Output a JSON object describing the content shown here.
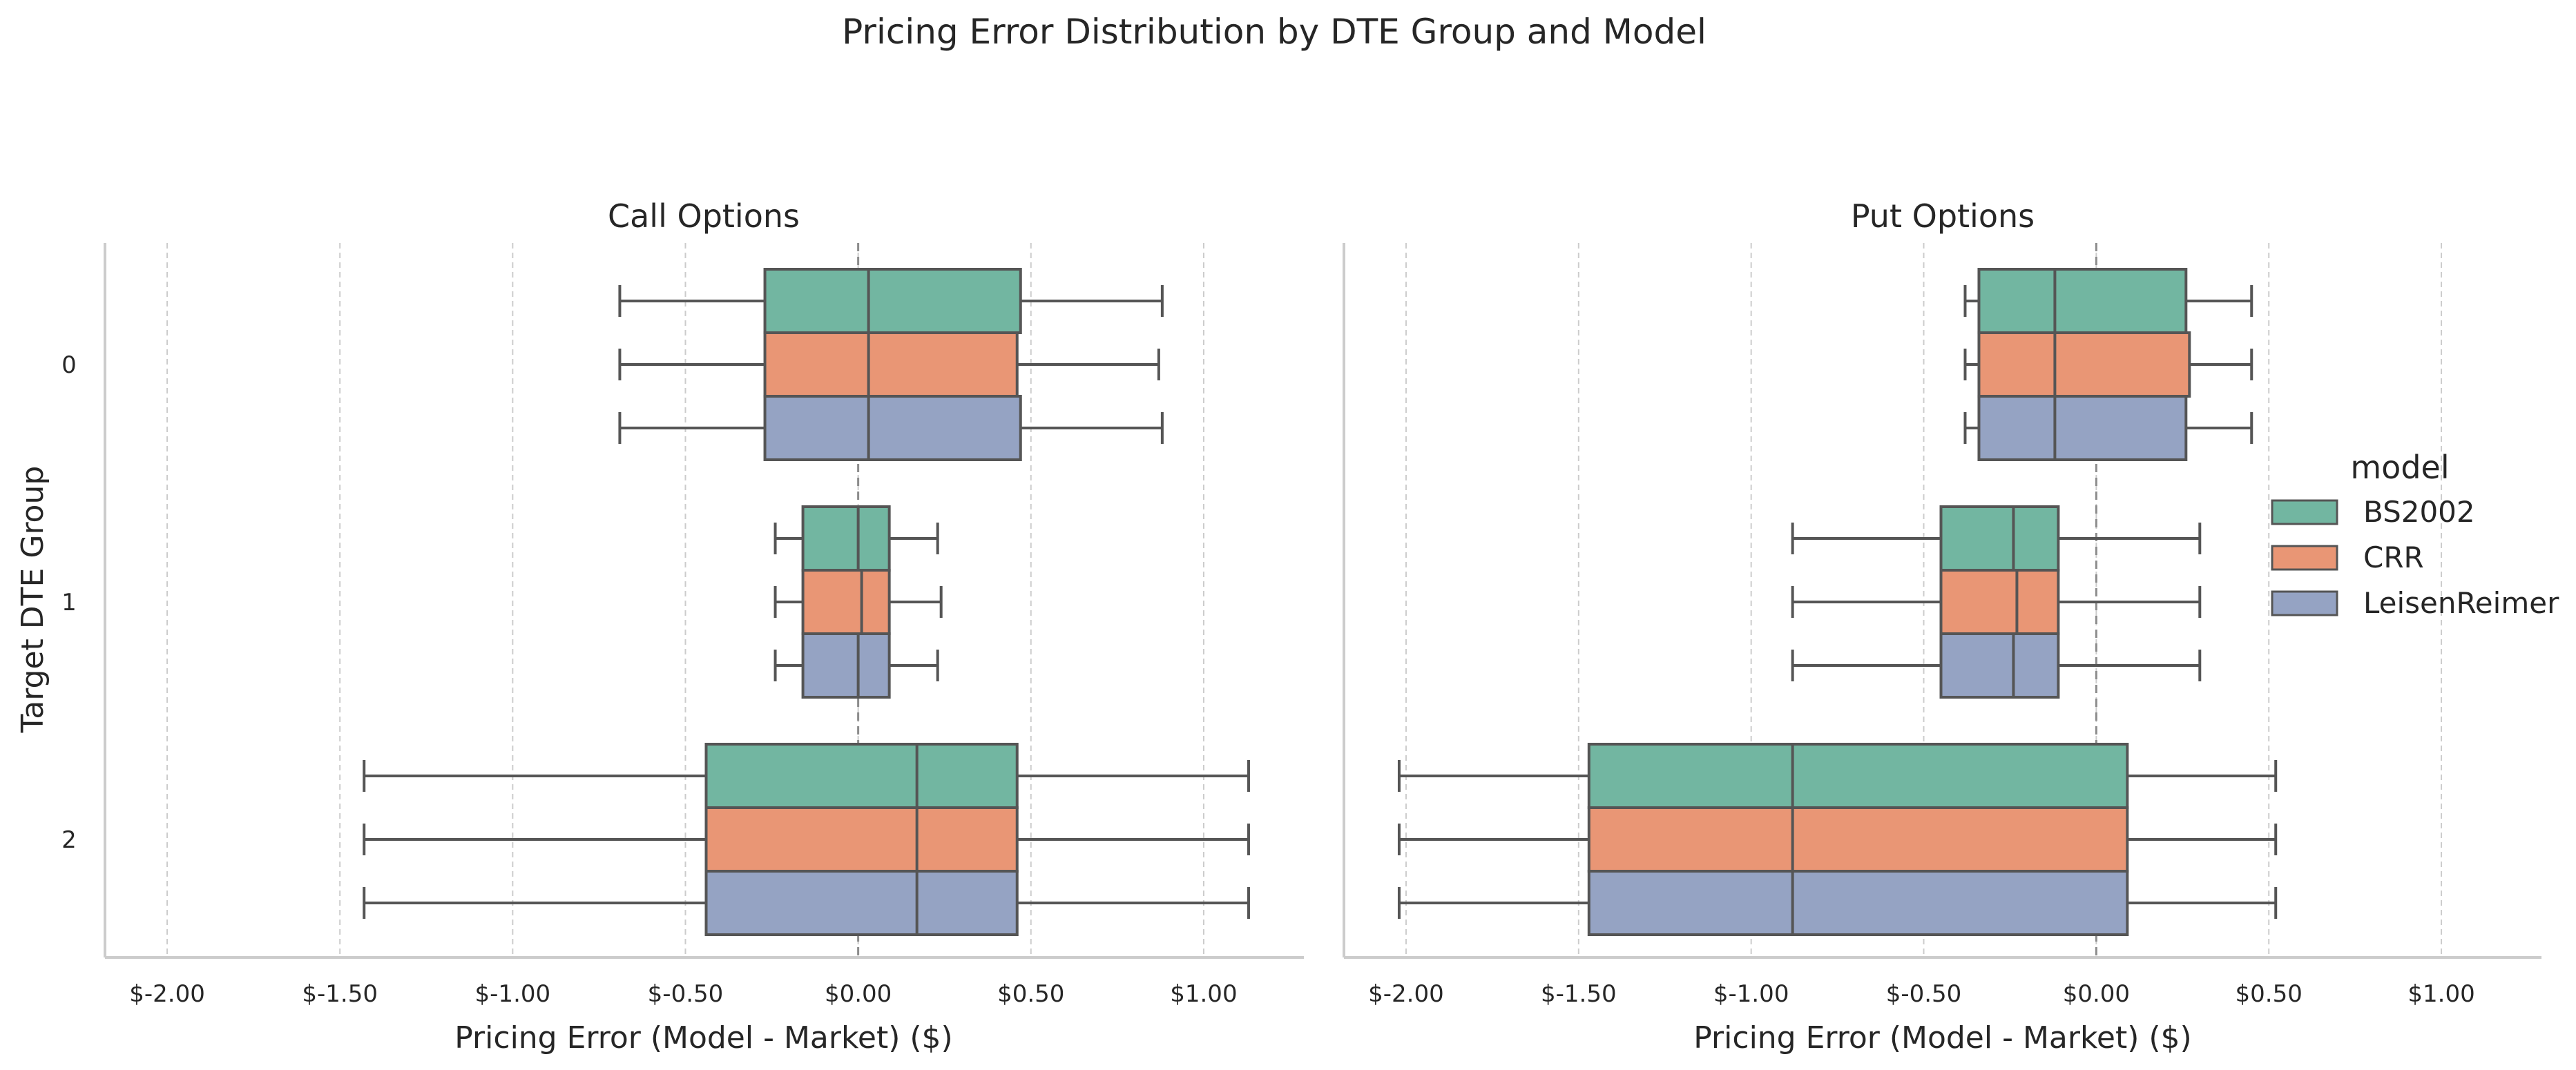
{
  "suptitle": "Pricing Error Distribution by DTE Group and Model",
  "colors": {
    "BS2002": "#72b6a1",
    "CRR": "#e99675",
    "LeisenReimer": "#95a3c3",
    "box_edge": "#555555",
    "grid": "#cccccc",
    "spine": "#cccccc",
    "zero_line": "#8c8c8c"
  },
  "chart_data": [
    {
      "type": "boxplot",
      "title": "Call Options",
      "xlabel": "Pricing Error (Model - Market) ($)",
      "ylabel": "Target DTE Group",
      "orientation": "horizontal",
      "xlim": [
        -2.18,
        1.29
      ],
      "xticks": [
        -2.0,
        -1.5,
        -1.0,
        -0.5,
        0.0,
        0.5,
        1.0
      ],
      "xtick_labels": [
        "$-2.00",
        "$-1.50",
        "$-1.00",
        "$-0.50",
        "$0.00",
        "$0.50",
        "$1.00"
      ],
      "categories": [
        "0",
        "1",
        "2"
      ],
      "grid": "x dashed",
      "reference_line": 0.0,
      "series": [
        {
          "name": "BS2002",
          "boxes": [
            {
              "whislo": -0.69,
              "q1": -0.27,
              "med": 0.03,
              "q3": 0.47,
              "whishi": 0.88
            },
            {
              "whislo": -0.24,
              "q1": -0.16,
              "med": 0.0,
              "q3": 0.09,
              "whishi": 0.23
            },
            {
              "whislo": -1.43,
              "q1": -0.44,
              "med": 0.17,
              "q3": 0.46,
              "whishi": 1.13
            }
          ]
        },
        {
          "name": "CRR",
          "boxes": [
            {
              "whislo": -0.69,
              "q1": -0.27,
              "med": 0.03,
              "q3": 0.46,
              "whishi": 0.87
            },
            {
              "whislo": -0.24,
              "q1": -0.16,
              "med": 0.01,
              "q3": 0.09,
              "whishi": 0.24
            },
            {
              "whislo": -1.43,
              "q1": -0.44,
              "med": 0.17,
              "q3": 0.46,
              "whishi": 1.13
            }
          ]
        },
        {
          "name": "LeisenReimer",
          "boxes": [
            {
              "whislo": -0.69,
              "q1": -0.27,
              "med": 0.03,
              "q3": 0.47,
              "whishi": 0.88
            },
            {
              "whislo": -0.24,
              "q1": -0.16,
              "med": 0.0,
              "q3": 0.09,
              "whishi": 0.23
            },
            {
              "whislo": -1.43,
              "q1": -0.44,
              "med": 0.17,
              "q3": 0.46,
              "whishi": 1.13
            }
          ]
        }
      ]
    },
    {
      "type": "boxplot",
      "title": "Put Options",
      "xlabel": "Pricing Error (Model - Market) ($)",
      "ylabel": "",
      "orientation": "horizontal",
      "xlim": [
        -2.18,
        1.29
      ],
      "xticks": [
        -2.0,
        -1.5,
        -1.0,
        -0.5,
        0.0,
        0.5,
        1.0
      ],
      "xtick_labels": [
        "$-2.00",
        "$-1.50",
        "$-1.00",
        "$-0.50",
        "$0.00",
        "$0.50",
        "$1.00"
      ],
      "categories": [
        "0",
        "1",
        "2"
      ],
      "grid": "x dashed",
      "reference_line": 0.0,
      "series": [
        {
          "name": "BS2002",
          "boxes": [
            {
              "whislo": -0.38,
              "q1": -0.34,
              "med": -0.12,
              "q3": 0.26,
              "whishi": 0.45
            },
            {
              "whislo": -0.88,
              "q1": -0.45,
              "med": -0.24,
              "q3": -0.11,
              "whishi": 0.3
            },
            {
              "whislo": -2.02,
              "q1": -1.47,
              "med": -0.88,
              "q3": 0.09,
              "whishi": 0.52
            }
          ]
        },
        {
          "name": "CRR",
          "boxes": [
            {
              "whislo": -0.38,
              "q1": -0.34,
              "med": -0.12,
              "q3": 0.27,
              "whishi": 0.45
            },
            {
              "whislo": -0.88,
              "q1": -0.45,
              "med": -0.23,
              "q3": -0.11,
              "whishi": 0.3
            },
            {
              "whislo": -2.02,
              "q1": -1.47,
              "med": -0.88,
              "q3": 0.09,
              "whishi": 0.52
            }
          ]
        },
        {
          "name": "LeisenReimer",
          "boxes": [
            {
              "whislo": -0.38,
              "q1": -0.34,
              "med": -0.12,
              "q3": 0.26,
              "whishi": 0.45
            },
            {
              "whislo": -0.88,
              "q1": -0.45,
              "med": -0.24,
              "q3": -0.11,
              "whishi": 0.3
            },
            {
              "whislo": -2.02,
              "q1": -1.47,
              "med": -0.88,
              "q3": 0.09,
              "whishi": 0.52
            }
          ]
        }
      ]
    }
  ],
  "legend": {
    "title": "model",
    "placement": "right",
    "entries": [
      "BS2002",
      "CRR",
      "LeisenReimer"
    ]
  }
}
